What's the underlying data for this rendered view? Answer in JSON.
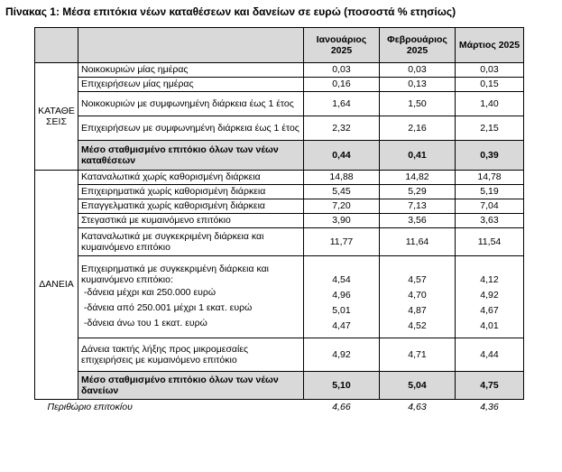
{
  "title": "Πίνακας 1: Μέσα επιτόκια νέων καταθέσεων και δανείων σε ευρώ (ποσοστά % ετησίως)",
  "columns": [
    "Ιανουάριος 2025",
    "Φεβρουάριος 2025",
    "Μάρτιος 2025"
  ],
  "deposits": {
    "group_label": "ΚΑΤΑΘΕΣΕΙΣ",
    "rows": [
      {
        "label": "Νοικοκυριών μίας ημέρας",
        "values": [
          "0,03",
          "0,03",
          "0,03"
        ]
      },
      {
        "label": "Επιχειρήσεων μίας ημέρας",
        "values": [
          "0,16",
          "0,13",
          "0,15"
        ]
      },
      {
        "label": "Νοικοκυριών με συμφωνημένη διάρκεια έως 1 έτος",
        "values": [
          "1,64",
          "1,50",
          "1,40"
        ]
      },
      {
        "label": "Επιχειρήσεων με συμφωνημένη διάρκεια έως 1 έτος",
        "values": [
          "2,32",
          "2,16",
          "2,15"
        ]
      }
    ],
    "total": {
      "label": "Μέσο σταθμισμένο επιτόκιο όλων των νέων καταθέσεων",
      "values": [
        "0,44",
        "0,41",
        "0,39"
      ]
    }
  },
  "loans": {
    "group_label": "ΔΑΝΕΙΑ",
    "rows": [
      {
        "label": "Καταναλωτικά χωρίς καθορισμένη διάρκεια",
        "values": [
          "14,88",
          "14,82",
          "14,78"
        ]
      },
      {
        "label": "Επιχειρηματικά χωρίς καθορισμένη διάρκεια",
        "values": [
          "5,45",
          "5,29",
          "5,19"
        ]
      },
      {
        "label": "Επαγγελματικά χωρίς καθορισμένη διάρκεια",
        "values": [
          "7,20",
          "7,13",
          "7,04"
        ]
      },
      {
        "label": "Στεγαστικά με κυμαινόμενο επιτόκιο",
        "values": [
          "3,90",
          "3,56",
          "3,63"
        ]
      },
      {
        "label": "Καταναλωτικά με συγκεκριμένη διάρκεια και κυμαινόμενο επιτόκιο",
        "values": [
          "11,77",
          "11,64",
          "11,54"
        ]
      }
    ],
    "business_fixed": {
      "label": "Επιχειρηματικά με συγκεκριμένη διάρκεια και κυμαινόμενο επιτόκιο:",
      "values": [
        "4,54",
        "4,57",
        "4,12"
      ],
      "subrows": [
        {
          "label": "-δάνεια μέχρι και 250.000 ευρώ",
          "values": [
            "4,96",
            "4,70",
            "4,92"
          ]
        },
        {
          "label": "-δάνεια από 250.001 μέχρι 1 εκατ. ευρώ",
          "values": [
            "5,01",
            "4,87",
            "4,67"
          ]
        },
        {
          "label": "-δάνεια άνω του 1 εκατ. ευρώ",
          "values": [
            "4,47",
            "4,52",
            "4,01"
          ]
        }
      ]
    },
    "microbusiness": {
      "label": "Δάνεια τακτής λήξης προς μικρομεσαίες επιχειρήσεις με κυμαινόμενο επιτόκιο",
      "values": [
        "4,92",
        "4,71",
        "4,44"
      ]
    },
    "total": {
      "label": "Μέσο σταθμισμένο επιτόκιο όλων των νέων δανείων",
      "values": [
        "5,10",
        "5,04",
        "4,75"
      ]
    }
  },
  "margin": {
    "label": "Περιθώριο επιτοκίου",
    "values": [
      "4,66",
      "4,63",
      "4,36"
    ]
  }
}
